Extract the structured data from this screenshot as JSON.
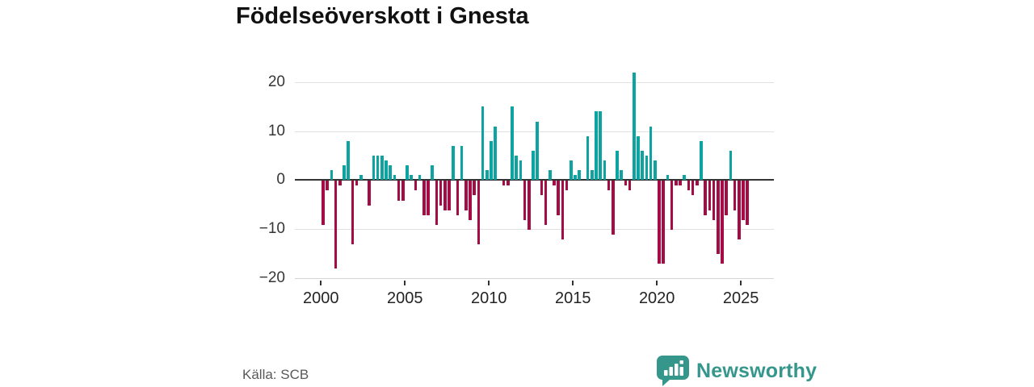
{
  "title": "Födelseöverskott i Gnesta",
  "source_note": "Källa: SCB",
  "logo": {
    "text": "Newsworthy",
    "icon": "newsworthy-speech-bubble-chart-icon"
  },
  "colors": {
    "positive": "#0ca3a0",
    "negative": "#a30c44",
    "grid": "#e1e1e1",
    "zero_line": "#333333",
    "axis_line": "#d4d4d4",
    "axis_text": "#363636",
    "source_text": "#595959",
    "logo": "#35978b"
  },
  "chart_data": {
    "type": "bar",
    "title": "Födelseöverskott i Gnesta",
    "frequency": "quarterly",
    "x_start_year": 2000,
    "x_start_quarter": 1,
    "values": [
      -9,
      -2,
      2,
      -18,
      -1,
      3,
      8,
      -13,
      -1,
      1,
      0,
      -5,
      5,
      5,
      5,
      4,
      3,
      1,
      -4,
      -4,
      3,
      1,
      -2,
      1,
      -7,
      -7,
      3,
      -9,
      -5,
      -6,
      -6,
      7,
      -7,
      7,
      -6,
      -8,
      -3,
      -13,
      15,
      2,
      8,
      11,
      0,
      -1,
      -1,
      15,
      5,
      4,
      -8,
      -10,
      6,
      12,
      -3,
      -9,
      2,
      -1,
      -7,
      -12,
      -2,
      4,
      1,
      2,
      0,
      9,
      2,
      14,
      14,
      4,
      -2,
      -11,
      6,
      2,
      -1,
      -2,
      22,
      9,
      6,
      5,
      11,
      4,
      -17,
      -17,
      1,
      -10,
      -1,
      -1,
      1,
      -2,
      -3,
      -1,
      8,
      -7,
      -6,
      -8,
      -15,
      -17,
      -7,
      6,
      -6,
      -12,
      -8,
      -9
    ],
    "x_ticks": [
      2000,
      2005,
      2010,
      2015,
      2020,
      2025
    ],
    "y_ticks": [
      20,
      10,
      0,
      -10,
      -20
    ],
    "ylim": [
      -20,
      22
    ],
    "grid": true,
    "legend": false,
    "xlabel": "",
    "ylabel": ""
  }
}
